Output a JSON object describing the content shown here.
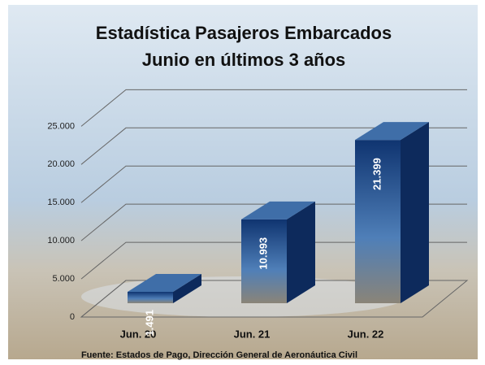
{
  "chart_data": {
    "type": "bar3d",
    "title": "Estadística Pasajeros Embarcados",
    "subtitle": "Junio en últimos 3 años",
    "source": "Fuente: Estados de Pago, Dirección General de Aeronáutica Civil",
    "categories": [
      "Jun. 20",
      "Jun. 21",
      "Jun. 22"
    ],
    "values": [
      1491,
      10993,
      21399
    ],
    "value_labels": [
      "1.491",
      "10.993",
      "21.399"
    ],
    "color": "#1d4f8f",
    "ylim": [
      0,
      26000
    ],
    "yticks": [
      0,
      {
        "value": 5000,
        "label": "5.000"
      },
      {
        "value": 10000,
        "label": "10.000"
      },
      {
        "value": 15000,
        "label": "15.000"
      },
      {
        "value": 20000,
        "label": "20.000"
      },
      {
        "value": 25000,
        "label": "25.000"
      }
    ],
    "grid": true
  }
}
